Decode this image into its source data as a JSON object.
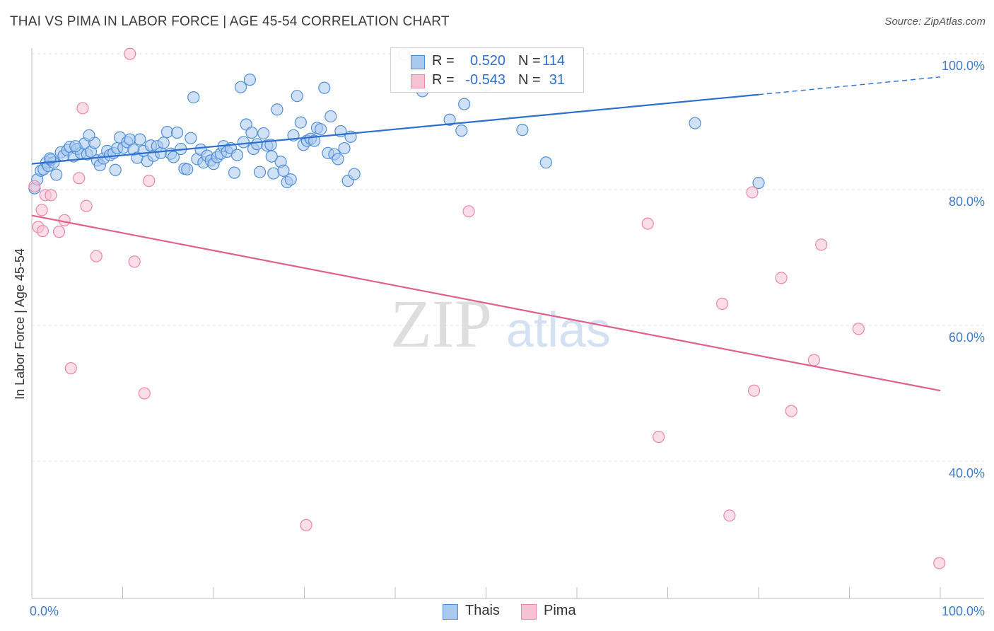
{
  "title": "THAI VS PIMA IN LABOR FORCE | AGE 45-54 CORRELATION CHART",
  "source": "Source: ZipAtlas.com",
  "watermark": {
    "zip": "ZIP",
    "atlas": "atlas"
  },
  "legend": {
    "rows": [
      {
        "r_label": "R =",
        "r_value": "0.520",
        "n_label": "N =",
        "n_value": "114"
      },
      {
        "r_label": "R =",
        "r_value": "-0.543",
        "n_label": "N =",
        "n_value": "31"
      }
    ],
    "series": [
      {
        "label": "Thais"
      },
      {
        "label": "Pima"
      }
    ]
  },
  "colors": {
    "thais_fill": "#a9c8ee",
    "thais_stroke": "#4f8fd8",
    "thais_line": "#2b6fcf",
    "pima_fill": "#f7c3d4",
    "pima_stroke": "#e987a8",
    "pima_line": "#e0608d",
    "axis_text": "#3f7bd0",
    "grid": "#e3e3e3"
  },
  "chart_data": {
    "type": "scatter",
    "title": "THAI VS PIMA IN LABOR FORCE | AGE 45-54 CORRELATION CHART",
    "xlabel": "",
    "ylabel": "In Labor Force | Age 45-54",
    "xlim": [
      0,
      100
    ],
    "ylim": [
      20,
      101
    ],
    "x_tick_labels": [
      "0.0%",
      "100.0%"
    ],
    "y_ticks": [
      40,
      60,
      80,
      100
    ],
    "y_tick_labels": [
      "40.0%",
      "60.0%",
      "80.0%",
      "100.0%"
    ],
    "series": [
      {
        "name": "Thais",
        "r": 0.52,
        "n": 114,
        "trend": {
          "x0": 0,
          "y0": 83.8,
          "x1": 80,
          "y1": 94.0,
          "dashed_to_x": 100,
          "dashed_to_y": 96.6
        },
        "points": [
          [
            0.3,
            80.2
          ],
          [
            0.6,
            81.5
          ],
          [
            1.0,
            82.8
          ],
          [
            1.3,
            83.0
          ],
          [
            1.6,
            84.0
          ],
          [
            1.8,
            83.5
          ],
          [
            2.1,
            84.4
          ],
          [
            2.4,
            84.0
          ],
          [
            2.7,
            82.2
          ],
          [
            3.2,
            85.5
          ],
          [
            3.5,
            85.0
          ],
          [
            3.9,
            85.8
          ],
          [
            4.2,
            86.3
          ],
          [
            4.6,
            84.9
          ],
          [
            5.0,
            86.0
          ],
          [
            5.4,
            85.4
          ],
          [
            5.8,
            86.8
          ],
          [
            6.1,
            85.2
          ],
          [
            6.5,
            85.6
          ],
          [
            6.9,
            86.9
          ],
          [
            7.2,
            84.3
          ],
          [
            7.5,
            83.6
          ],
          [
            7.9,
            84.6
          ],
          [
            8.3,
            85.7
          ],
          [
            8.6,
            85.1
          ],
          [
            9.0,
            85.4
          ],
          [
            9.4,
            86.1
          ],
          [
            9.7,
            87.7
          ],
          [
            10.1,
            86.2
          ],
          [
            10.5,
            87.0
          ],
          [
            10.8,
            87.4
          ],
          [
            11.2,
            85.9
          ],
          [
            11.6,
            84.7
          ],
          [
            11.9,
            87.4
          ],
          [
            12.3,
            85.7
          ],
          [
            12.7,
            84.2
          ],
          [
            13.1,
            86.5
          ],
          [
            13.4,
            85.0
          ],
          [
            13.8,
            86.4
          ],
          [
            14.2,
            85.4
          ],
          [
            14.5,
            86.9
          ],
          [
            14.9,
            88.5
          ],
          [
            15.3,
            85.3
          ],
          [
            15.6,
            84.8
          ],
          [
            16.0,
            88.4
          ],
          [
            16.4,
            86.0
          ],
          [
            16.8,
            83.1
          ],
          [
            17.1,
            83.0
          ],
          [
            17.5,
            87.6
          ],
          [
            17.8,
            93.6
          ],
          [
            18.2,
            84.5
          ],
          [
            18.6,
            85.9
          ],
          [
            18.9,
            84.0
          ],
          [
            19.3,
            85.0
          ],
          [
            19.7,
            84.3
          ],
          [
            20.0,
            83.8
          ],
          [
            20.4,
            84.8
          ],
          [
            20.8,
            85.3
          ],
          [
            21.1,
            86.4
          ],
          [
            21.5,
            85.6
          ],
          [
            21.9,
            86.1
          ],
          [
            22.3,
            82.5
          ],
          [
            22.6,
            85.1
          ],
          [
            23.0,
            95.1
          ],
          [
            23.3,
            87.0
          ],
          [
            23.6,
            89.6
          ],
          [
            24.0,
            96.2
          ],
          [
            24.4,
            86.0
          ],
          [
            24.8,
            86.7
          ],
          [
            25.1,
            82.6
          ],
          [
            25.5,
            88.3
          ],
          [
            25.9,
            86.5
          ],
          [
            26.3,
            86.6
          ],
          [
            26.6,
            82.4
          ],
          [
            27.0,
            91.8
          ],
          [
            27.4,
            84.1
          ],
          [
            27.7,
            82.8
          ],
          [
            28.1,
            81.1
          ],
          [
            28.5,
            81.5
          ],
          [
            28.8,
            88.0
          ],
          [
            29.2,
            93.8
          ],
          [
            29.6,
            89.9
          ],
          [
            29.9,
            86.6
          ],
          [
            30.3,
            87.2
          ],
          [
            30.7,
            87.5
          ],
          [
            31.1,
            87.2
          ],
          [
            31.4,
            89.1
          ],
          [
            31.8,
            88.9
          ],
          [
            32.2,
            95.0
          ],
          [
            32.6,
            85.4
          ],
          [
            32.9,
            90.8
          ],
          [
            33.3,
            85.2
          ],
          [
            33.7,
            84.5
          ],
          [
            34.0,
            88.6
          ],
          [
            34.4,
            86.1
          ],
          [
            34.8,
            81.3
          ],
          [
            35.1,
            87.8
          ],
          [
            35.5,
            82.3
          ],
          [
            41.0,
            99.9
          ],
          [
            43.0,
            94.5
          ],
          [
            46.0,
            90.3
          ],
          [
            47.3,
            88.7
          ],
          [
            47.6,
            92.6
          ],
          [
            50.0,
            95.3
          ],
          [
            54.0,
            88.8
          ],
          [
            56.6,
            84.0
          ],
          [
            73.0,
            89.8
          ],
          [
            80.0,
            81.0
          ],
          [
            2.0,
            84.6
          ],
          [
            4.8,
            86.4
          ],
          [
            6.3,
            88.0
          ],
          [
            9.2,
            82.9
          ],
          [
            24.2,
            88.4
          ],
          [
            26.4,
            84.9
          ]
        ]
      },
      {
        "name": "Pima",
        "r": -0.543,
        "n": 31,
        "trend": {
          "x0": 0,
          "y0": 76.2,
          "x1": 100,
          "y1": 50.4
        },
        "points": [
          [
            0.3,
            80.5
          ],
          [
            0.7,
            74.5
          ],
          [
            1.1,
            77.0
          ],
          [
            1.5,
            79.2
          ],
          [
            2.1,
            79.2
          ],
          [
            3.0,
            73.8
          ],
          [
            3.6,
            75.5
          ],
          [
            4.3,
            53.7
          ],
          [
            5.2,
            81.7
          ],
          [
            5.6,
            92.0
          ],
          [
            6.0,
            77.6
          ],
          [
            7.1,
            70.2
          ],
          [
            10.8,
            100.0
          ],
          [
            11.3,
            69.4
          ],
          [
            12.4,
            50.0
          ],
          [
            12.9,
            81.3
          ],
          [
            30.2,
            30.6
          ],
          [
            48.1,
            76.8
          ],
          [
            67.8,
            75.0
          ],
          [
            69.0,
            43.6
          ],
          [
            76.0,
            63.2
          ],
          [
            76.8,
            32.0
          ],
          [
            79.3,
            79.6
          ],
          [
            79.5,
            50.4
          ],
          [
            82.5,
            67.0
          ],
          [
            83.6,
            47.4
          ],
          [
            86.1,
            54.9
          ],
          [
            86.9,
            71.9
          ],
          [
            91.0,
            59.5
          ],
          [
            99.9,
            25.0
          ],
          [
            1.2,
            73.9
          ]
        ]
      }
    ],
    "legend_position": "top-center"
  }
}
